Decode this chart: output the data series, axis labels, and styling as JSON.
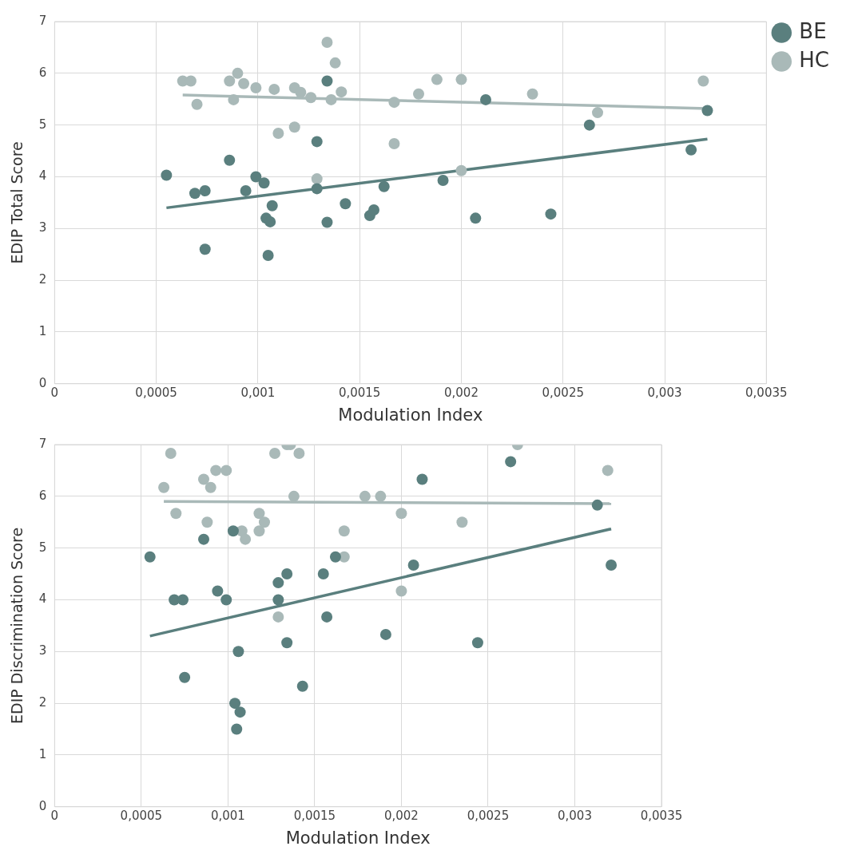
{
  "chart_data": [
    {
      "type": "scatter",
      "xlabel": "Modulation Index",
      "ylabel": "EDIP Total Score",
      "xlim": [
        0,
        0.0035
      ],
      "ylim": [
        0,
        7
      ],
      "xticks": [
        0,
        {
          "value": 0.0005,
          "label": "0,0005"
        },
        {
          "value": 0.001,
          "label": "0,001"
        },
        {
          "value": 0.0015,
          "label": "0,0015"
        },
        {
          "value": 0.002,
          "label": "0,002"
        },
        {
          "value": 0.0025,
          "label": "0,0025"
        },
        {
          "value": 0.003,
          "label": "0,003"
        },
        {
          "value": 0.0035,
          "label": "0,0035"
        }
      ],
      "yticks": [
        0,
        1,
        2,
        3,
        4,
        5,
        6,
        7
      ],
      "grid": true,
      "legend": "top right",
      "marker": "circle",
      "series": [
        {
          "name": "BE",
          "color": "#5a7f7e",
          "x": [
            0.00055,
            0.00069,
            0.00074,
            0.00074,
            0.00086,
            0.00094,
            0.00099,
            0.00103,
            0.00104,
            0.00106,
            0.00107,
            0.00105,
            0.00129,
            0.00129,
            0.00134,
            0.00134,
            0.00143,
            0.00155,
            0.00157,
            0.00162,
            0.00191,
            0.00207,
            0.00212,
            0.00244,
            0.00263,
            0.00313,
            0.00321
          ],
          "values": [
            4.03,
            3.68,
            3.73,
            2.6,
            4.32,
            3.73,
            4.0,
            3.88,
            3.2,
            3.13,
            3.44,
            2.48,
            4.68,
            3.77,
            5.85,
            3.12,
            3.48,
            3.25,
            3.36,
            3.81,
            3.93,
            3.2,
            5.49,
            3.28,
            5.0,
            4.52,
            5.28
          ]
        },
        {
          "name": "HC",
          "color": "#a9b9b8",
          "x": [
            0.00063,
            0.00067,
            0.0007,
            0.00086,
            0.00088,
            0.0009,
            0.00093,
            0.00099,
            0.00108,
            0.0011,
            0.00118,
            0.00118,
            0.00121,
            0.00126,
            0.00129,
            0.00134,
            0.00136,
            0.00138,
            0.00141,
            0.00167,
            0.00167,
            0.00179,
            0.00188,
            0.002,
            0.002,
            0.00235,
            0.00267,
            0.00319
          ],
          "values": [
            5.85,
            5.85,
            5.4,
            5.85,
            5.49,
            6.0,
            5.8,
            5.72,
            5.69,
            4.84,
            4.96,
            5.72,
            5.63,
            5.53,
            3.96,
            6.6,
            5.49,
            6.2,
            5.64,
            4.64,
            5.44,
            5.6,
            5.88,
            5.88,
            4.12,
            5.6,
            5.24,
            5.85
          ]
        },
        {
          "type": "line",
          "color": "#5a7f7e",
          "marker": "none",
          "x": [
            0.00055,
            0.00321
          ],
          "values": [
            3.4,
            4.73
          ]
        },
        {
          "type": "line",
          "color": "#a9b9b8",
          "marker": "none",
          "x": [
            0.00063,
            0.00321
          ],
          "values": [
            5.58,
            5.32
          ]
        }
      ]
    },
    {
      "type": "scatter",
      "xlabel": "Modulation Index",
      "ylabel": "EDIP Discrimination Score",
      "xlim": [
        0,
        0.0035
      ],
      "ylim": [
        0,
        7
      ],
      "xticks": [
        0,
        {
          "value": 0.0005,
          "label": "0,0005"
        },
        {
          "value": 0.001,
          "label": "0,001"
        },
        {
          "value": 0.0015,
          "label": "0,0015"
        },
        {
          "value": 0.002,
          "label": "0,002"
        },
        {
          "value": 0.0025,
          "label": "0,0025"
        },
        {
          "value": 0.003,
          "label": "0,003"
        },
        {
          "value": 0.0035,
          "label": "0,0035"
        }
      ],
      "yticks": [
        0,
        1,
        2,
        3,
        4,
        5,
        6,
        7
      ],
      "grid": true,
      "marker": "circle",
      "series": [
        {
          "color": "#5a7f7e",
          "x": [
            0.00055,
            0.00069,
            0.00074,
            0.00075,
            0.00086,
            0.00094,
            0.00099,
            0.00103,
            0.00104,
            0.00105,
            0.00106,
            0.00107,
            0.00129,
            0.00129,
            0.00134,
            0.00134,
            0.00143,
            0.00155,
            0.00157,
            0.00162,
            0.00191,
            0.00207,
            0.00212,
            0.00244,
            0.00263,
            0.00313,
            0.00321
          ],
          "values": [
            4.83,
            4.0,
            4.0,
            2.5,
            5.17,
            4.17,
            4.0,
            5.33,
            2.0,
            1.5,
            3.0,
            1.83,
            4.33,
            4.0,
            4.5,
            3.17,
            2.33,
            4.5,
            3.67,
            4.83,
            3.33,
            4.67,
            6.33,
            3.17,
            6.67,
            5.83,
            4.67
          ]
        },
        {
          "color": "#a9b9b8",
          "x": [
            0.00063,
            0.00067,
            0.0007,
            0.00086,
            0.00088,
            0.0009,
            0.00093,
            0.00099,
            0.00108,
            0.0011,
            0.00118,
            0.00118,
            0.00121,
            0.00127,
            0.00129,
            0.00134,
            0.00136,
            0.00138,
            0.00141,
            0.00167,
            0.00167,
            0.00179,
            0.00188,
            0.002,
            0.002,
            0.00235,
            0.00267,
            0.00319
          ],
          "values": [
            6.17,
            6.83,
            5.67,
            6.33,
            5.5,
            6.17,
            6.5,
            6.5,
            5.33,
            5.17,
            5.33,
            5.67,
            5.5,
            6.83,
            3.67,
            7.0,
            7.0,
            6.0,
            6.83,
            4.83,
            5.33,
            6.0,
            6.0,
            5.67,
            4.17,
            5.5,
            7.0,
            6.5
          ]
        },
        {
          "type": "line",
          "color": "#5a7f7e",
          "marker": "none",
          "x": [
            0.00055,
            0.00321
          ],
          "values": [
            3.3,
            5.37
          ]
        },
        {
          "type": "line",
          "color": "#a9b9b8",
          "marker": "none",
          "x": [
            0.00063,
            0.00321
          ],
          "values": [
            5.9,
            5.86
          ]
        }
      ]
    }
  ]
}
